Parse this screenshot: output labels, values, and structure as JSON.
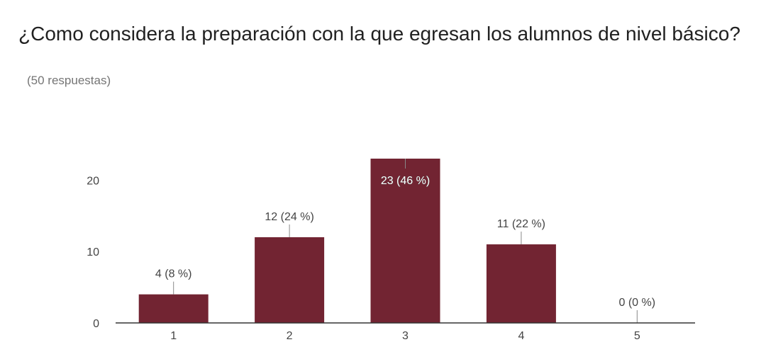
{
  "header": {
    "title": "¿Como considera la preparación con la que egresan los alumnos de nivel básico?",
    "subtitle": "(50 respuestas)"
  },
  "colors": {
    "bar": "#722432",
    "axis": "#333333",
    "leader": "#888888"
  },
  "chart_data": {
    "type": "bar",
    "categories": [
      "1",
      "2",
      "3",
      "4",
      "5"
    ],
    "values": [
      4,
      12,
      23,
      11,
      0
    ],
    "data_labels": [
      "4 (8 %)",
      "12 (24 %)",
      "23 (46 %)",
      "11 (22 %)",
      "0 (0 %)"
    ],
    "yticks": [
      0,
      10,
      20
    ],
    "ylim": [
      0,
      23
    ],
    "grid": false,
    "legend": "none"
  }
}
